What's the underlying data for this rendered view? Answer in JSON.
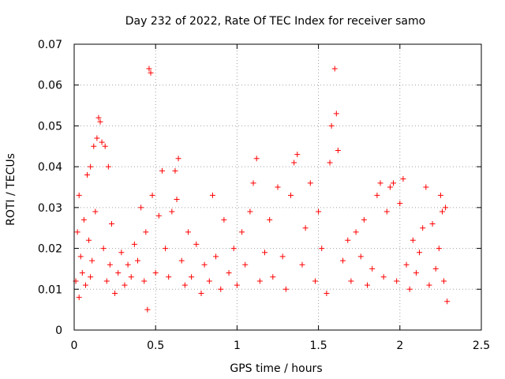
{
  "chart_data": {
    "type": "scatter",
    "title": "Day 232 of 2022, Rate Of TEC Index for receiver samo",
    "xlabel": "GPS time / hours",
    "ylabel": "ROTI / TECUs",
    "xlim": [
      0,
      2.5
    ],
    "ylim": [
      0,
      0.07
    ],
    "xticks": [
      "0",
      "0.5",
      "1",
      "1.5",
      "2",
      "2.5"
    ],
    "yticks": [
      "0",
      "0.01",
      "0.02",
      "0.03",
      "0.04",
      "0.05",
      "0.06",
      "0.07"
    ],
    "grid": true,
    "marker": "+",
    "color": "#ff0000",
    "series": [
      {
        "points": [
          [
            0.01,
            0.012
          ],
          [
            0.02,
            0.024
          ],
          [
            0.03,
            0.033
          ],
          [
            0.03,
            0.008
          ],
          [
            0.04,
            0.018
          ],
          [
            0.05,
            0.014
          ],
          [
            0.06,
            0.027
          ],
          [
            0.07,
            0.011
          ],
          [
            0.08,
            0.038
          ],
          [
            0.09,
            0.022
          ],
          [
            0.1,
            0.04
          ],
          [
            0.1,
            0.013
          ],
          [
            0.11,
            0.017
          ],
          [
            0.12,
            0.045
          ],
          [
            0.13,
            0.029
          ],
          [
            0.14,
            0.047
          ],
          [
            0.15,
            0.052
          ],
          [
            0.16,
            0.051
          ],
          [
            0.17,
            0.046
          ],
          [
            0.18,
            0.02
          ],
          [
            0.19,
            0.045
          ],
          [
            0.2,
            0.012
          ],
          [
            0.21,
            0.04
          ],
          [
            0.22,
            0.016
          ],
          [
            0.23,
            0.026
          ],
          [
            0.25,
            0.009
          ],
          [
            0.27,
            0.014
          ],
          [
            0.29,
            0.019
          ],
          [
            0.31,
            0.011
          ],
          [
            0.33,
            0.016
          ],
          [
            0.35,
            0.013
          ],
          [
            0.37,
            0.021
          ],
          [
            0.39,
            0.017
          ],
          [
            0.41,
            0.03
          ],
          [
            0.43,
            0.012
          ],
          [
            0.44,
            0.024
          ],
          [
            0.45,
            0.005
          ],
          [
            0.46,
            0.064
          ],
          [
            0.47,
            0.063
          ],
          [
            0.48,
            0.033
          ],
          [
            0.5,
            0.014
          ],
          [
            0.52,
            0.028
          ],
          [
            0.54,
            0.039
          ],
          [
            0.56,
            0.02
          ],
          [
            0.58,
            0.013
          ],
          [
            0.6,
            0.029
          ],
          [
            0.62,
            0.039
          ],
          [
            0.63,
            0.032
          ],
          [
            0.64,
            0.042
          ],
          [
            0.66,
            0.017
          ],
          [
            0.68,
            0.011
          ],
          [
            0.7,
            0.024
          ],
          [
            0.72,
            0.013
          ],
          [
            0.75,
            0.021
          ],
          [
            0.78,
            0.009
          ],
          [
            0.8,
            0.016
          ],
          [
            0.83,
            0.012
          ],
          [
            0.85,
            0.033
          ],
          [
            0.87,
            0.018
          ],
          [
            0.9,
            0.01
          ],
          [
            0.92,
            0.027
          ],
          [
            0.95,
            0.014
          ],
          [
            0.98,
            0.02
          ],
          [
            1.0,
            0.011
          ],
          [
            1.03,
            0.024
          ],
          [
            1.05,
            0.016
          ],
          [
            1.08,
            0.029
          ],
          [
            1.1,
            0.036
          ],
          [
            1.12,
            0.042
          ],
          [
            1.14,
            0.012
          ],
          [
            1.17,
            0.019
          ],
          [
            1.2,
            0.027
          ],
          [
            1.22,
            0.013
          ],
          [
            1.25,
            0.035
          ],
          [
            1.28,
            0.018
          ],
          [
            1.3,
            0.01
          ],
          [
            1.33,
            0.033
          ],
          [
            1.35,
            0.041
          ],
          [
            1.37,
            0.043
          ],
          [
            1.4,
            0.016
          ],
          [
            1.42,
            0.025
          ],
          [
            1.45,
            0.036
          ],
          [
            1.48,
            0.012
          ],
          [
            1.5,
            0.029
          ],
          [
            1.52,
            0.02
          ],
          [
            1.55,
            0.009
          ],
          [
            1.57,
            0.041
          ],
          [
            1.58,
            0.05
          ],
          [
            1.6,
            0.064
          ],
          [
            1.61,
            0.053
          ],
          [
            1.62,
            0.044
          ],
          [
            1.65,
            0.017
          ],
          [
            1.68,
            0.022
          ],
          [
            1.7,
            0.012
          ],
          [
            1.73,
            0.024
          ],
          [
            1.76,
            0.018
          ],
          [
            1.78,
            0.027
          ],
          [
            1.8,
            0.011
          ],
          [
            1.83,
            0.015
          ],
          [
            1.86,
            0.033
          ],
          [
            1.88,
            0.036
          ],
          [
            1.9,
            0.013
          ],
          [
            1.92,
            0.029
          ],
          [
            1.94,
            0.035
          ],
          [
            1.96,
            0.036
          ],
          [
            1.98,
            0.012
          ],
          [
            2.0,
            0.031
          ],
          [
            2.02,
            0.037
          ],
          [
            2.04,
            0.016
          ],
          [
            2.06,
            0.01
          ],
          [
            2.08,
            0.022
          ],
          [
            2.1,
            0.014
          ],
          [
            2.12,
            0.019
          ],
          [
            2.14,
            0.025
          ],
          [
            2.16,
            0.035
          ],
          [
            2.18,
            0.011
          ],
          [
            2.2,
            0.026
          ],
          [
            2.22,
            0.015
          ],
          [
            2.24,
            0.02
          ],
          [
            2.25,
            0.033
          ],
          [
            2.26,
            0.029
          ],
          [
            2.27,
            0.012
          ],
          [
            2.28,
            0.03
          ],
          [
            2.29,
            0.007
          ]
        ]
      }
    ]
  }
}
